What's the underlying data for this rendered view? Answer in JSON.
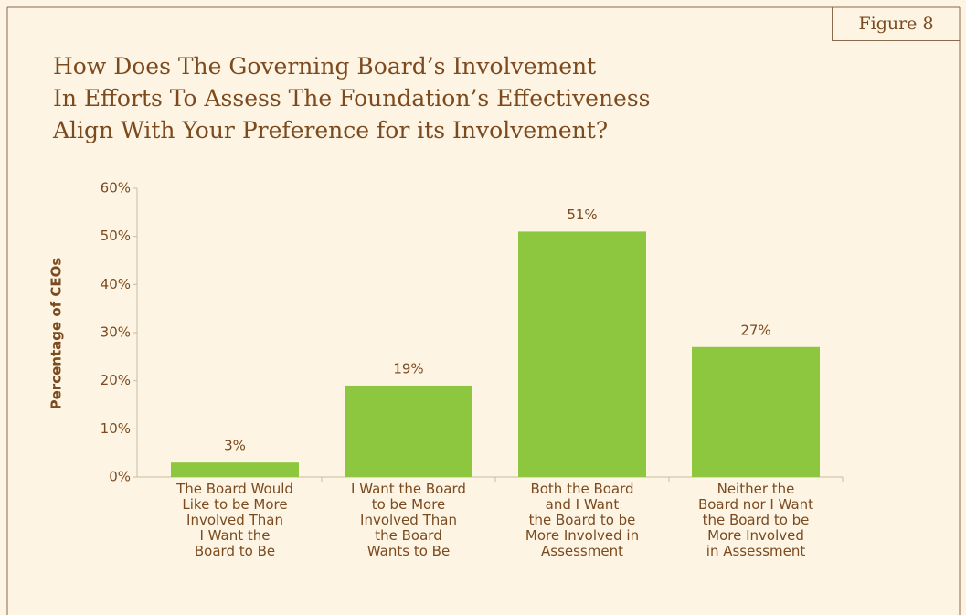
{
  "chart_data": {
    "type": "bar",
    "figure_label": "Figure 8",
    "title": "How Does The Governing Board’s Involvement\nIn Efforts To Assess The Foundation’s Effectiveness\nAlign With Your Preference for its Involvement?",
    "y_label": "Percentage of CEOs",
    "categories": [
      "The Board Would\nLike to be More\nInvolved Than\nI Want the\nBoard to Be",
      "I Want the Board\nto be More\nInvolved Than\nthe Board\nWants to Be",
      "Both the Board\nand I Want\nthe Board to be\nMore Involved in\nAssessment",
      "Neither the\nBoard nor I Want\nthe Board to be\nMore Involved\nin Assessment"
    ],
    "values": [
      3,
      19,
      51,
      27
    ],
    "value_labels": [
      "3%",
      "19%",
      "51%",
      "27%"
    ],
    "color": "#8dc63f",
    "ylim": [
      0,
      60
    ],
    "yticks": [
      {
        "value": 0,
        "label": "0%"
      },
      {
        "value": 10,
        "label": "10%"
      },
      {
        "value": 20,
        "label": "20%"
      },
      {
        "value": 30,
        "label": "30%"
      },
      {
        "value": 40,
        "label": "40%"
      },
      {
        "value": 50,
        "label": "50%"
      },
      {
        "value": 60,
        "label": "60%"
      }
    ],
    "grid": false
  }
}
